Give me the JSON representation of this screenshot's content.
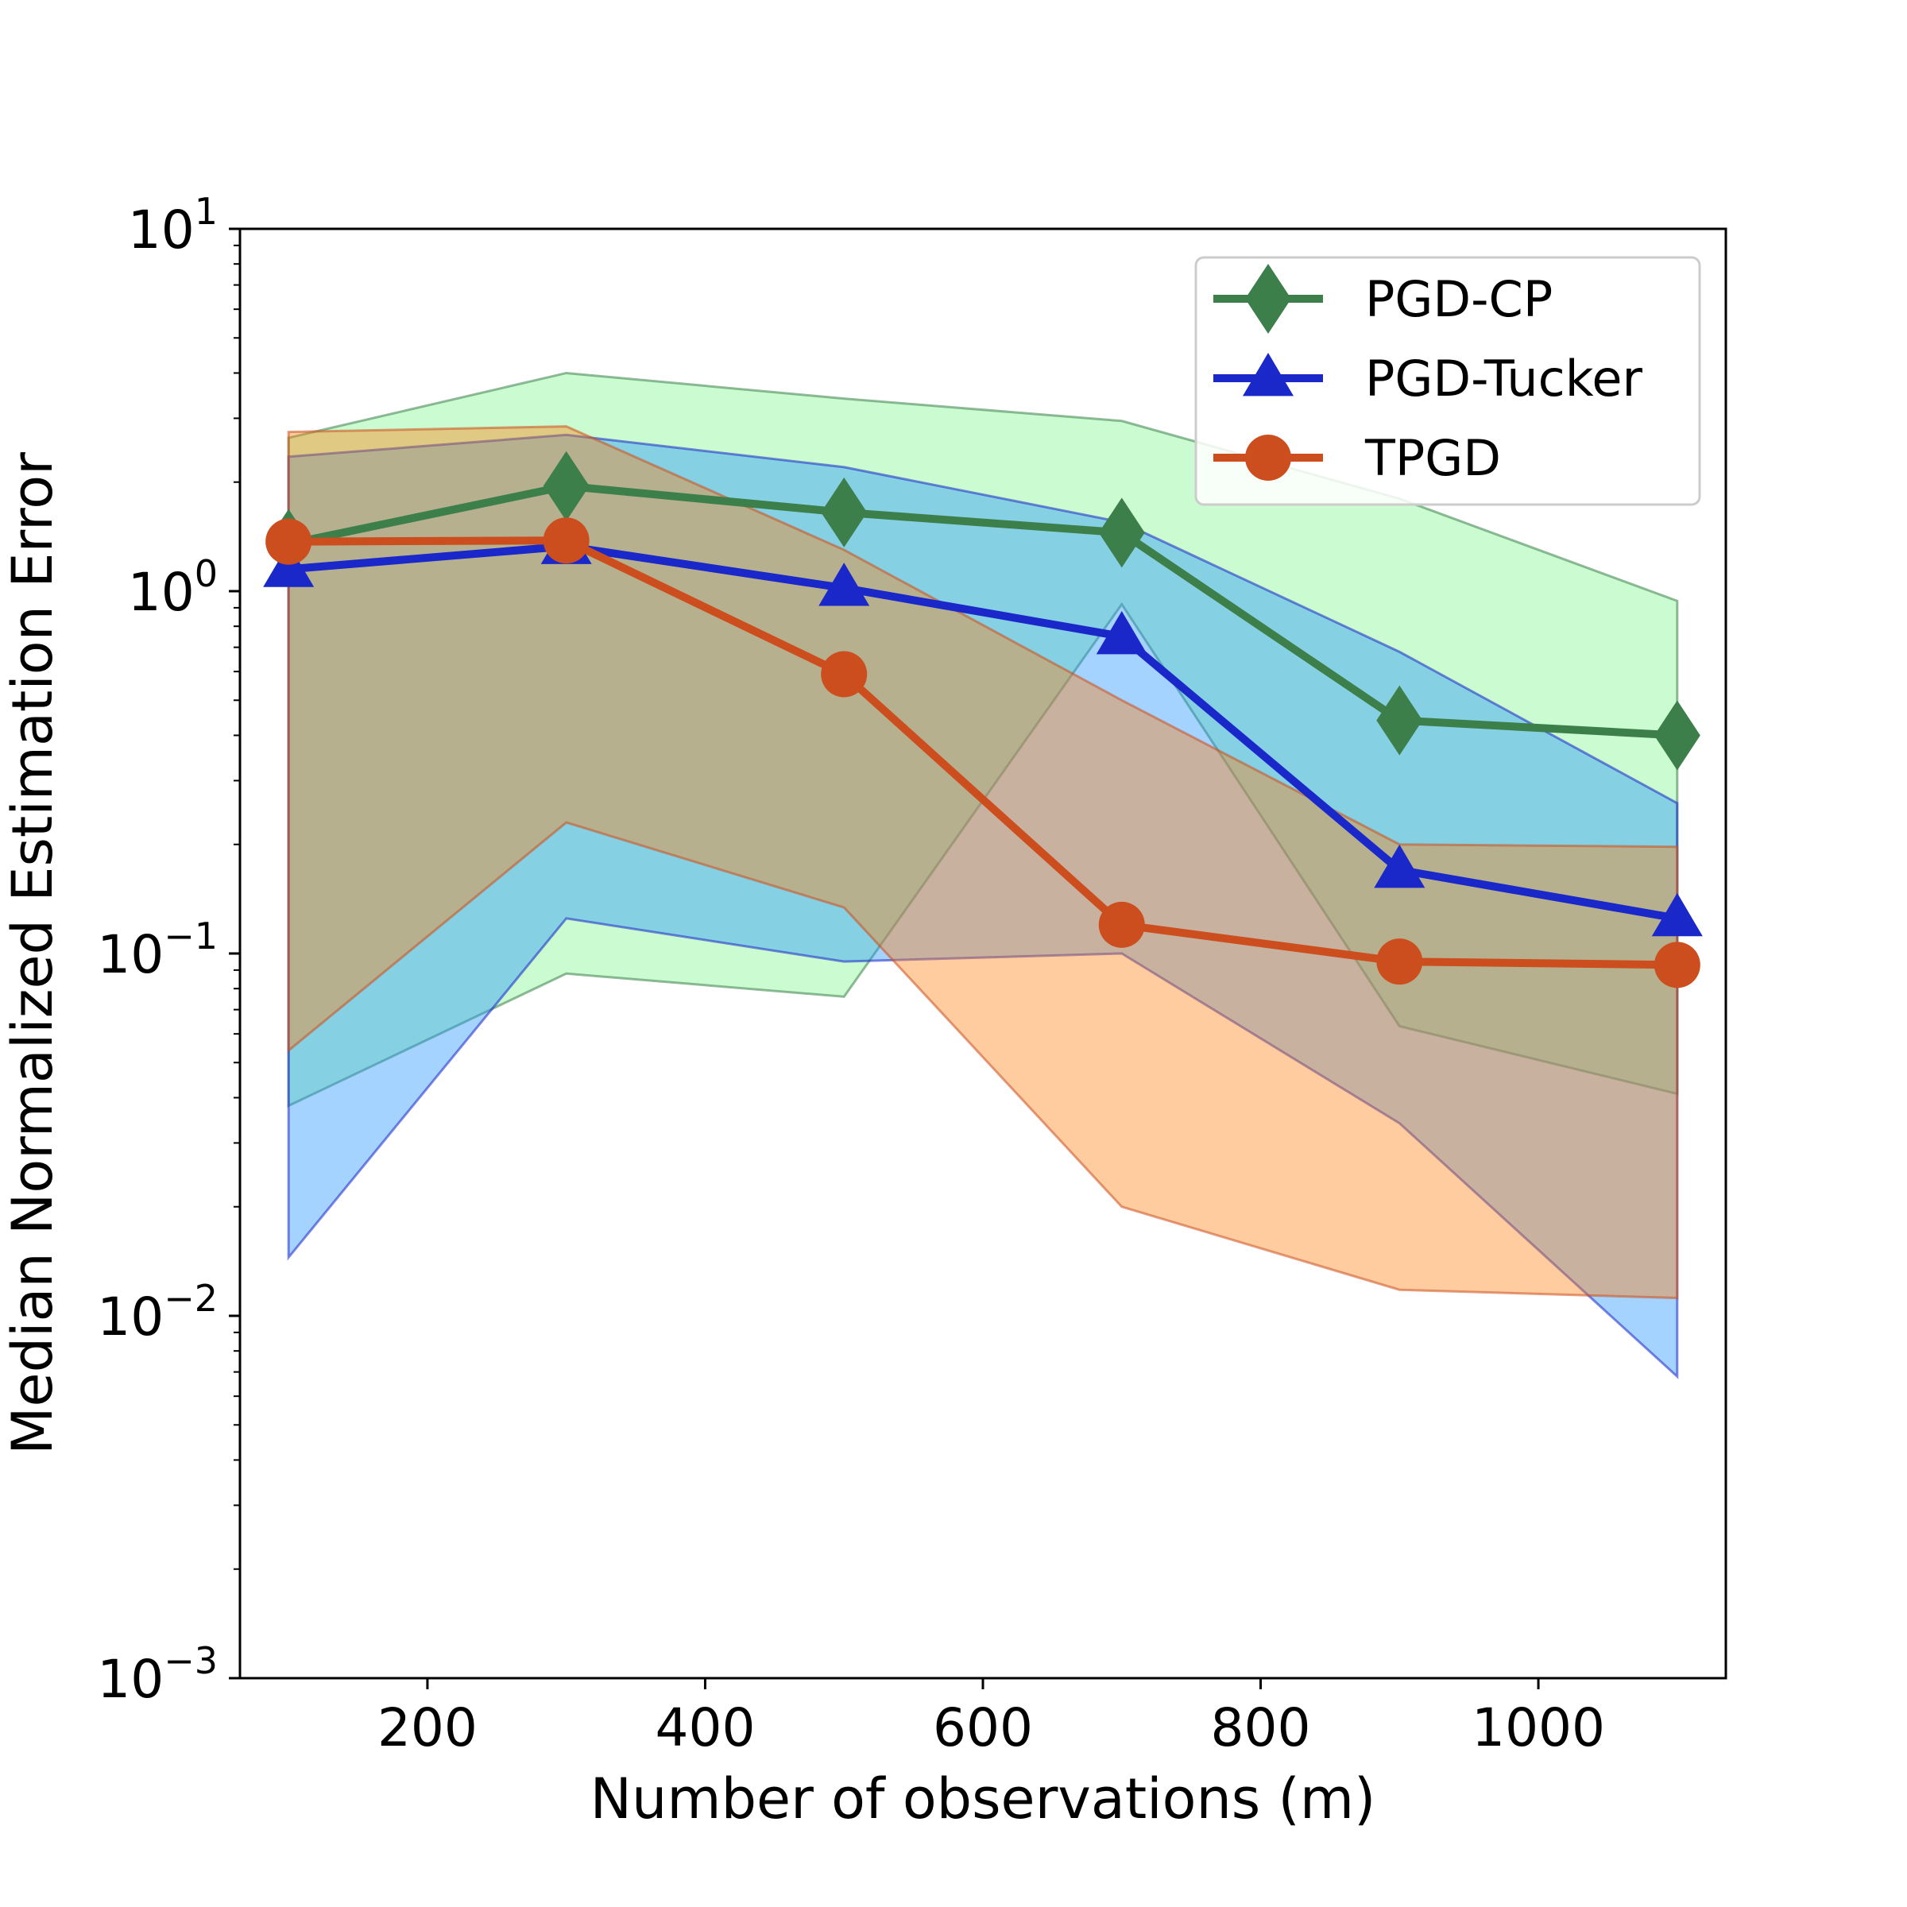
{
  "chart_data": {
    "type": "line",
    "xlabel": "Number of observations (m)",
    "ylabel": "Median Normalized Estimation Error",
    "yscale": "log",
    "xlim": [
      65,
      1135
    ],
    "ylim": [
      0.001,
      10
    ],
    "xticks": [
      200,
      400,
      600,
      800,
      1000
    ],
    "yticks": [
      {
        "value": 0.001,
        "base": "10",
        "exp": "−3"
      },
      {
        "value": 0.01,
        "base": "10",
        "exp": "−2"
      },
      {
        "value": 0.1,
        "base": "10",
        "exp": "−1"
      },
      {
        "value": 1,
        "base": "10",
        "exp": "0"
      },
      {
        "value": 10,
        "base": "10",
        "exp": "1"
      }
    ],
    "grid": false,
    "legend_position": "upper right",
    "x": [
      100,
      300,
      500,
      700,
      900,
      1100
    ],
    "series": [
      {
        "name": "PGD-CP",
        "color": "#3d7f4a",
        "fill": "#7cf58a",
        "marker": "diamond",
        "values": [
          1.35,
          1.95,
          1.65,
          1.45,
          0.44,
          0.4
        ],
        "upper": [
          2.65,
          4.0,
          3.4,
          2.95,
          1.8,
          0.94
        ],
        "lower": [
          0.038,
          0.088,
          0.076,
          0.92,
          0.063,
          0.041
        ]
      },
      {
        "name": "PGD-Tucker",
        "color": "#1a27c9",
        "fill": "#1e90ff",
        "marker": "triangle",
        "values": [
          1.15,
          1.33,
          1.02,
          0.75,
          0.17,
          0.125
        ],
        "upper": [
          2.35,
          2.7,
          2.2,
          1.55,
          0.68,
          0.26
        ],
        "lower": [
          0.0145,
          0.125,
          0.095,
          0.1,
          0.034,
          0.0068
        ]
      },
      {
        "name": "TPGD",
        "color": "#cc4e1e",
        "fill": "#ff7f0e",
        "marker": "circle",
        "values": [
          1.37,
          1.38,
          0.59,
          0.12,
          0.095,
          0.093
        ],
        "upper": [
          2.75,
          2.85,
          1.3,
          0.5,
          0.2,
          0.197
        ],
        "lower": [
          0.054,
          0.23,
          0.134,
          0.02,
          0.0118,
          0.0112
        ]
      }
    ]
  }
}
